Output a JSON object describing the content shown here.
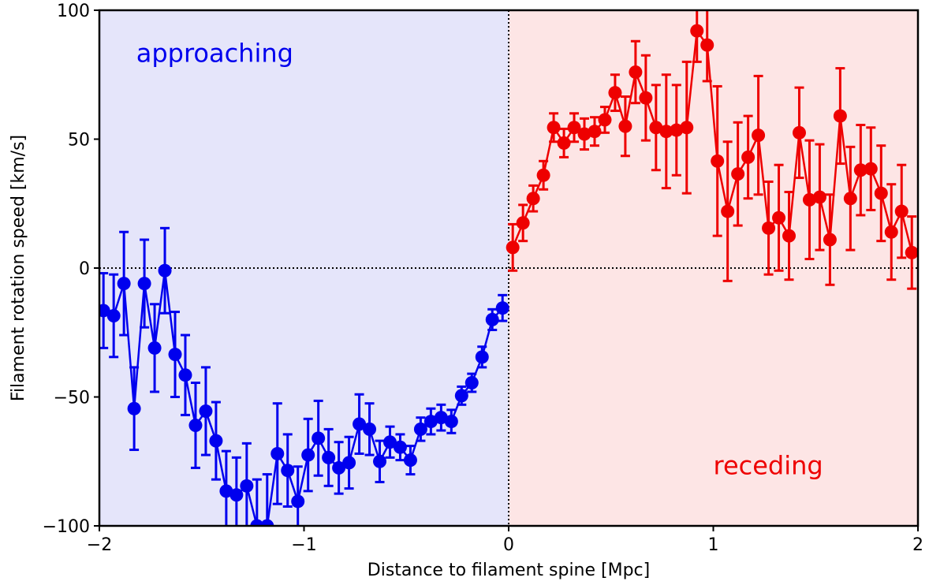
{
  "chart_data": {
    "type": "scatter",
    "title": "",
    "xlabel": "Distance to filament spine [Mpc]",
    "ylabel": "Filament rotation speed [km/s]",
    "xlim": [
      -2,
      2
    ],
    "ylim": [
      -100,
      100
    ],
    "xticks": [
      -2,
      -1,
      0,
      1,
      2
    ],
    "yticks": [
      -100,
      -50,
      0,
      50,
      100
    ],
    "xtick_labels": [
      "−2",
      "−1",
      "0",
      "1",
      "2"
    ],
    "ytick_labels": [
      "−100",
      "−50",
      "0",
      "50",
      "100"
    ],
    "grid": false,
    "regions": [
      {
        "x0": -2,
        "x1": 0,
        "color": "#e5e5fa"
      },
      {
        "x0": 0,
        "x1": 2,
        "color": "#fde5e5"
      }
    ],
    "reference_lines": [
      {
        "orientation": "horizontal",
        "value": 0,
        "style": "dotted",
        "color": "#000000"
      },
      {
        "orientation": "vertical",
        "value": 0,
        "style": "dotted",
        "color": "#000000"
      }
    ],
    "annotations": [
      {
        "text": "approaching",
        "x": -1.82,
        "y": 80,
        "color": "#0000ee"
      },
      {
        "text": "receding",
        "x": 1.0,
        "y": -80,
        "color": "#ee0000"
      }
    ],
    "series": [
      {
        "color": "#0000ee",
        "x": [
          -1.98,
          -1.93,
          -1.88,
          -1.83,
          -1.78,
          -1.73,
          -1.68,
          -1.63,
          -1.58,
          -1.53,
          -1.48,
          -1.43,
          -1.38,
          -1.33,
          -1.28,
          -1.23,
          -1.18,
          -1.13,
          -1.08,
          -1.03,
          -0.98,
          -0.93,
          -0.88,
          -0.83,
          -0.78,
          -0.73,
          -0.68,
          -0.63,
          -0.58,
          -0.53,
          -0.48,
          -0.43,
          -0.38,
          -0.33,
          -0.28,
          -0.23,
          -0.18,
          -0.13,
          -0.08,
          -0.03
        ],
        "y": [
          -16.5,
          -18.5,
          -6,
          -54.5,
          -6,
          -31,
          -1,
          -33.5,
          -41.5,
          -61,
          -55.5,
          -67,
          -86.5,
          -88,
          -84.5,
          -100,
          -100,
          -72,
          -78.5,
          -90.5,
          -72.5,
          -66,
          -73.5,
          -77.5,
          -75.5,
          -60.5,
          -62.5,
          -75,
          -67.5,
          -69.5,
          -74.5,
          -62.5,
          -59.5,
          -58,
          -59.5,
          -49.5,
          -44.5,
          -34.5,
          -20,
          -15.5
        ],
        "err": [
          14.5,
          16,
          20,
          16,
          17,
          17,
          16.5,
          16.5,
          15.5,
          16.5,
          17,
          15,
          15.5,
          14.5,
          16.5,
          18,
          20,
          19.5,
          14,
          13.5,
          14,
          14.5,
          11,
          10,
          10,
          11.5,
          10,
          8,
          6,
          5,
          5.5,
          4.5,
          5,
          5,
          4.5,
          3.5,
          3.5,
          4,
          4,
          5
        ]
      },
      {
        "color": "#ee0000",
        "x": [
          0.02,
          0.07,
          0.12,
          0.17,
          0.22,
          0.27,
          0.32,
          0.37,
          0.42,
          0.47,
          0.52,
          0.57,
          0.62,
          0.67,
          0.72,
          0.77,
          0.82,
          0.87,
          0.92,
          0.97,
          1.02,
          1.07,
          1.12,
          1.17,
          1.22,
          1.27,
          1.32,
          1.37,
          1.42,
          1.47,
          1.52,
          1.57,
          1.62,
          1.67,
          1.72,
          1.77,
          1.82,
          1.87,
          1.92,
          1.97
        ],
        "y": [
          8,
          17.5,
          27,
          36,
          54.5,
          48.5,
          54.5,
          52,
          53,
          57.5,
          68,
          55,
          76,
          66,
          54.5,
          53,
          53.5,
          54.5,
          92,
          86.5,
          41.5,
          22,
          36.5,
          43,
          51.5,
          15.5,
          19.5,
          12.5,
          52.5,
          26.5,
          27.5,
          11,
          59,
          27,
          38,
          38.5,
          29,
          14,
          22,
          6
        ],
        "err": [
          9,
          7,
          5,
          5.5,
          5.5,
          5.5,
          5.5,
          6,
          5.5,
          5,
          7,
          11.5,
          12,
          16.5,
          16.5,
          22,
          17.5,
          25.5,
          12,
          14,
          29,
          27,
          20,
          16,
          23,
          18,
          20.5,
          17,
          17.5,
          23,
          20.5,
          17.5,
          18.5,
          20,
          17.5,
          16,
          18.5,
          18.5,
          18,
          14
        ]
      }
    ]
  }
}
